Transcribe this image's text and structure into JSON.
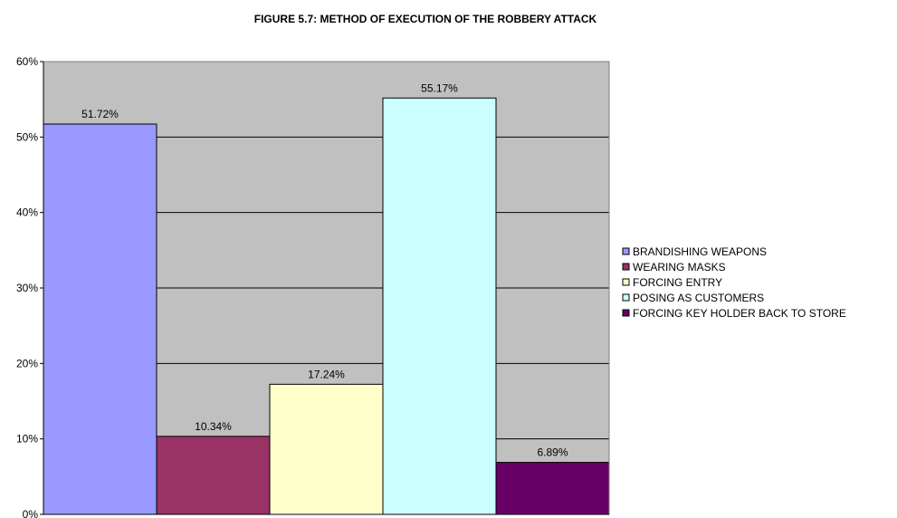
{
  "chart_data": {
    "type": "bar",
    "title": "FIGURE 5.7: METHOD OF EXECUTION OF THE ROBBERY ATTACK",
    "xlabel": "",
    "ylabel": "",
    "ylim": [
      0,
      60
    ],
    "y_ticks": [
      0,
      10,
      20,
      30,
      40,
      50,
      60
    ],
    "y_tick_suffix": "%",
    "grid": true,
    "plot_background": "#c0c0c0",
    "legend_position": "right",
    "series": [
      {
        "name": "BRANDISHING WEAPONS",
        "value": 51.72,
        "label": "51.72%",
        "color": "#9999ff"
      },
      {
        "name": "WEARING MASKS",
        "value": 10.34,
        "label": "10.34%",
        "color": "#993366"
      },
      {
        "name": "FORCING ENTRY",
        "value": 17.24,
        "label": "17.24%",
        "color": "#ffffcc"
      },
      {
        "name": "POSING AS CUSTOMERS",
        "value": 55.17,
        "label": "55.17%",
        "color": "#ccffff"
      },
      {
        "name": "FORCING KEY HOLDER BACK TO STORE",
        "value": 6.89,
        "label": "6.89%",
        "color": "#660066"
      }
    ]
  }
}
